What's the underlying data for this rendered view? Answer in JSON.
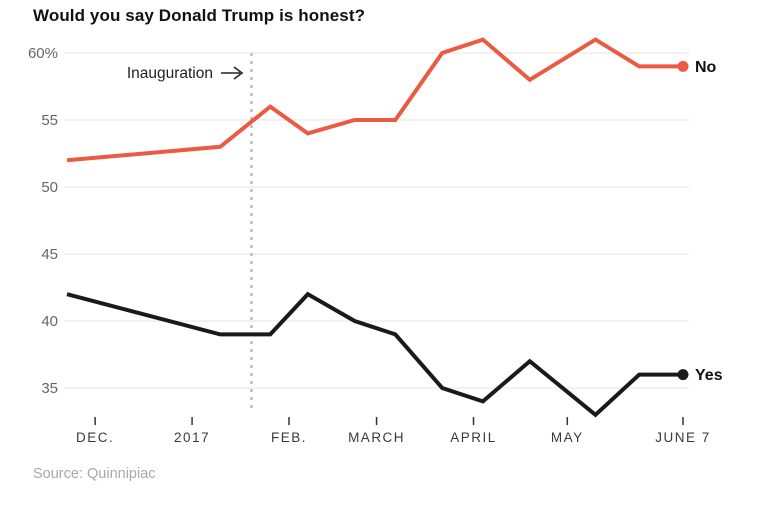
{
  "title": "Would you say Donald Trump is honest?",
  "source": "Source: Quinnipiac",
  "colors": {
    "no_line": "#ea5b41",
    "yes_line": "#1a1a1a",
    "gridline": "#e9e9e9",
    "dashed_rule": "#b0b0b0",
    "y_label": "#666666",
    "x_label": "#3a3a3a",
    "annotation": "#222222",
    "end_label": "#111111"
  },
  "chart_data": {
    "type": "line",
    "title": "Would you say Donald Trump is honest?",
    "x_unit": "days since Nov 1, 2016",
    "x_ticks": [
      {
        "label": "DEC.",
        "day": 30
      },
      {
        "label": "2017",
        "day": 61
      },
      {
        "label": "FEB.",
        "day": 92
      },
      {
        "label": "MARCH",
        "day": 120
      },
      {
        "label": "APRIL",
        "day": 151
      },
      {
        "label": "MAY",
        "day": 181
      },
      {
        "label": "JUNE 7",
        "day": 218
      }
    ],
    "y_ticks": [
      {
        "label": "60%",
        "value": 60
      },
      {
        "label": "55",
        "value": 55
      },
      {
        "label": "50",
        "value": 50
      },
      {
        "label": "45",
        "value": 45
      },
      {
        "label": "40",
        "value": 40
      },
      {
        "label": "35",
        "value": 35
      }
    ],
    "ylim": [
      33,
      61
    ],
    "grid": true,
    "annotation": {
      "label": "Inauguration",
      "day": 80
    },
    "series": [
      {
        "name": "No",
        "color": "#ea5b41",
        "points": [
          {
            "day": 21,
            "value": 52
          },
          {
            "day": 70,
            "value": 53
          },
          {
            "day": 86,
            "value": 56
          },
          {
            "day": 98,
            "value": 54
          },
          {
            "day": 113,
            "value": 55
          },
          {
            "day": 126,
            "value": 55
          },
          {
            "day": 141,
            "value": 60
          },
          {
            "day": 154,
            "value": 61
          },
          {
            "day": 169,
            "value": 58
          },
          {
            "day": 190,
            "value": 61
          },
          {
            "day": 204,
            "value": 59
          },
          {
            "day": 218,
            "value": 59
          }
        ]
      },
      {
        "name": "Yes",
        "color": "#1a1a1a",
        "points": [
          {
            "day": 21,
            "value": 42
          },
          {
            "day": 70,
            "value": 39
          },
          {
            "day": 86,
            "value": 39
          },
          {
            "day": 98,
            "value": 42
          },
          {
            "day": 113,
            "value": 40
          },
          {
            "day": 126,
            "value": 39
          },
          {
            "day": 141,
            "value": 35
          },
          {
            "day": 154,
            "value": 34
          },
          {
            "day": 169,
            "value": 37
          },
          {
            "day": 190,
            "value": 33
          },
          {
            "day": 204,
            "value": 36
          },
          {
            "day": 218,
            "value": 36
          }
        ]
      }
    ]
  }
}
